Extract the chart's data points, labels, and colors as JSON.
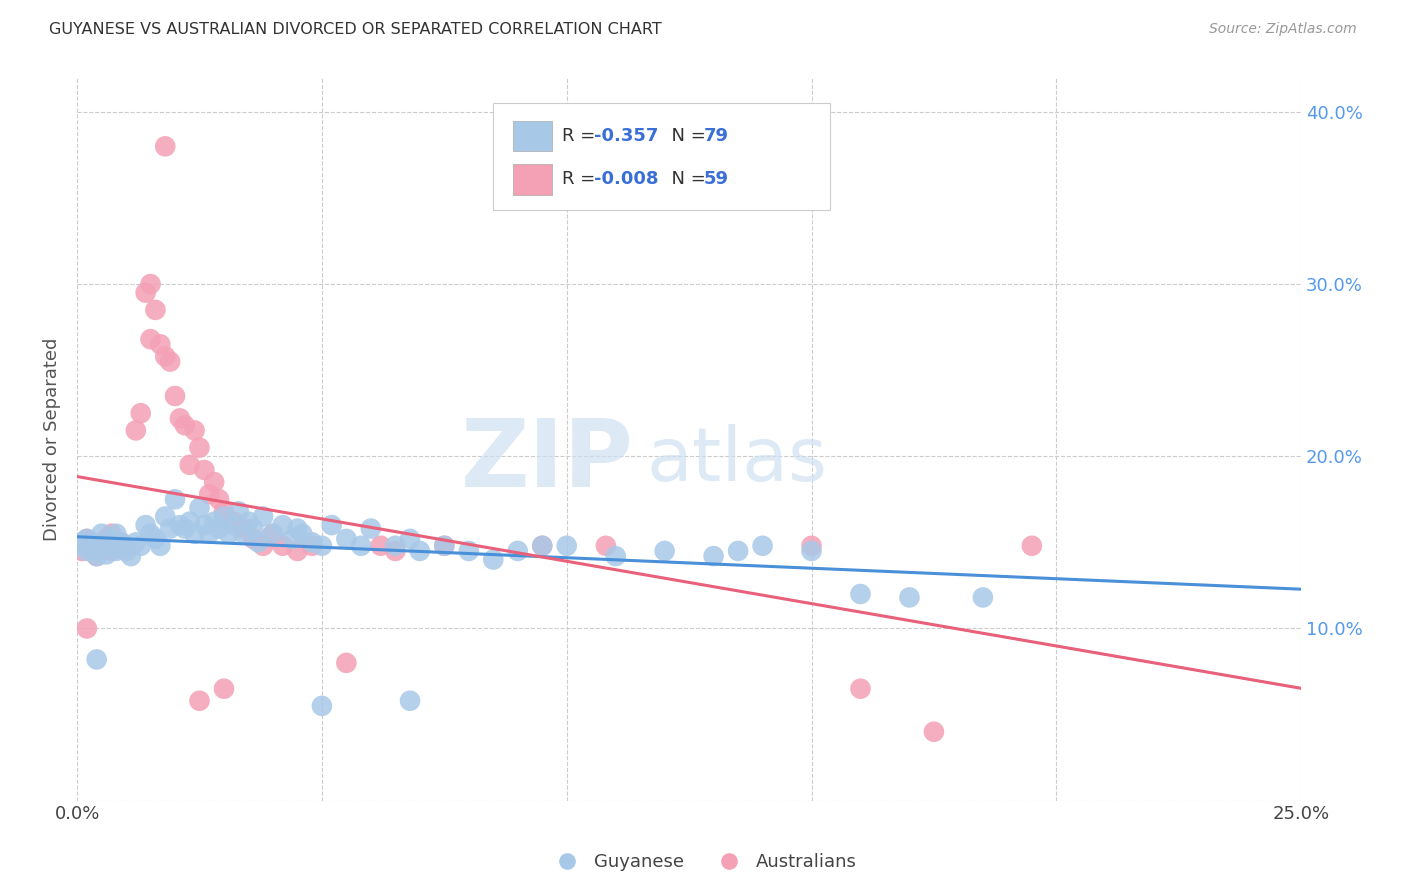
{
  "title": "GUYANESE VS AUSTRALIAN DIVORCED OR SEPARATED CORRELATION CHART",
  "source": "Source: ZipAtlas.com",
  "ylabel": "Divorced or Separated",
  "watermark_zip": "ZIP",
  "watermark_atlas": "atlas",
  "xlim": [
    0.0,
    0.25
  ],
  "ylim": [
    0.0,
    0.42
  ],
  "xtick_vals": [
    0.0,
    0.05,
    0.1,
    0.15,
    0.2,
    0.25
  ],
  "xtick_labels": [
    "0.0%",
    "",
    "",
    "",
    "",
    "25.0%"
  ],
  "ytick_vals": [
    0.0,
    0.1,
    0.2,
    0.3,
    0.4
  ],
  "ytick_labels_right": [
    "",
    "10.0%",
    "20.0%",
    "30.0%",
    "40.0%"
  ],
  "guyanese_R": -0.357,
  "guyanese_N": 79,
  "australian_R": -0.008,
  "australian_N": 59,
  "blue_scatter": "#a8c8e8",
  "pink_scatter": "#f4a0b5",
  "blue_line_color": "#4a90d9",
  "pink_line_color": "#e8607a",
  "legend_blue_label": "Guyanese",
  "legend_pink_label": "Australians",
  "legend_text_color": "#3a6fd8",
  "legend_label_color": "#333333",
  "guyanese_points": [
    [
      0.001,
      0.148
    ],
    [
      0.001,
      0.15
    ],
    [
      0.002,
      0.145
    ],
    [
      0.002,
      0.152
    ],
    [
      0.003,
      0.15
    ],
    [
      0.003,
      0.148
    ],
    [
      0.004,
      0.145
    ],
    [
      0.004,
      0.142
    ],
    [
      0.005,
      0.155
    ],
    [
      0.005,
      0.148
    ],
    [
      0.006,
      0.15
    ],
    [
      0.006,
      0.143
    ],
    [
      0.007,
      0.148
    ],
    [
      0.007,
      0.152
    ],
    [
      0.008,
      0.145
    ],
    [
      0.008,
      0.155
    ],
    [
      0.009,
      0.15
    ],
    [
      0.01,
      0.148
    ],
    [
      0.01,
      0.145
    ],
    [
      0.011,
      0.142
    ],
    [
      0.012,
      0.15
    ],
    [
      0.013,
      0.148
    ],
    [
      0.014,
      0.16
    ],
    [
      0.015,
      0.155
    ],
    [
      0.016,
      0.152
    ],
    [
      0.017,
      0.148
    ],
    [
      0.018,
      0.165
    ],
    [
      0.019,
      0.158
    ],
    [
      0.02,
      0.175
    ],
    [
      0.021,
      0.16
    ],
    [
      0.022,
      0.158
    ],
    [
      0.023,
      0.162
    ],
    [
      0.024,
      0.155
    ],
    [
      0.025,
      0.17
    ],
    [
      0.026,
      0.16
    ],
    [
      0.027,
      0.155
    ],
    [
      0.028,
      0.162
    ],
    [
      0.029,
      0.158
    ],
    [
      0.03,
      0.165
    ],
    [
      0.031,
      0.155
    ],
    [
      0.032,
      0.16
    ],
    [
      0.033,
      0.168
    ],
    [
      0.034,
      0.155
    ],
    [
      0.035,
      0.162
    ],
    [
      0.036,
      0.158
    ],
    [
      0.037,
      0.15
    ],
    [
      0.038,
      0.165
    ],
    [
      0.04,
      0.155
    ],
    [
      0.042,
      0.16
    ],
    [
      0.044,
      0.152
    ],
    [
      0.045,
      0.158
    ],
    [
      0.046,
      0.155
    ],
    [
      0.048,
      0.15
    ],
    [
      0.05,
      0.148
    ],
    [
      0.052,
      0.16
    ],
    [
      0.055,
      0.152
    ],
    [
      0.058,
      0.148
    ],
    [
      0.06,
      0.158
    ],
    [
      0.065,
      0.148
    ],
    [
      0.068,
      0.152
    ],
    [
      0.07,
      0.145
    ],
    [
      0.075,
      0.148
    ],
    [
      0.08,
      0.145
    ],
    [
      0.085,
      0.14
    ],
    [
      0.09,
      0.145
    ],
    [
      0.095,
      0.148
    ],
    [
      0.1,
      0.148
    ],
    [
      0.11,
      0.142
    ],
    [
      0.12,
      0.145
    ],
    [
      0.13,
      0.142
    ],
    [
      0.135,
      0.145
    ],
    [
      0.14,
      0.148
    ],
    [
      0.15,
      0.145
    ],
    [
      0.16,
      0.12
    ],
    [
      0.17,
      0.118
    ],
    [
      0.185,
      0.118
    ],
    [
      0.004,
      0.082
    ],
    [
      0.05,
      0.055
    ],
    [
      0.068,
      0.058
    ]
  ],
  "australian_points": [
    [
      0.001,
      0.148
    ],
    [
      0.001,
      0.145
    ],
    [
      0.002,
      0.152
    ],
    [
      0.002,
      0.148
    ],
    [
      0.003,
      0.145
    ],
    [
      0.003,
      0.15
    ],
    [
      0.004,
      0.148
    ],
    [
      0.004,
      0.142
    ],
    [
      0.005,
      0.15
    ],
    [
      0.005,
      0.145
    ],
    [
      0.006,
      0.148
    ],
    [
      0.006,
      0.152
    ],
    [
      0.007,
      0.155
    ],
    [
      0.007,
      0.145
    ],
    [
      0.008,
      0.148
    ],
    [
      0.009,
      0.15
    ],
    [
      0.01,
      0.145
    ],
    [
      0.012,
      0.215
    ],
    [
      0.013,
      0.225
    ],
    [
      0.014,
      0.295
    ],
    [
      0.015,
      0.3
    ],
    [
      0.015,
      0.268
    ],
    [
      0.016,
      0.285
    ],
    [
      0.017,
      0.265
    ],
    [
      0.018,
      0.38
    ],
    [
      0.018,
      0.258
    ],
    [
      0.019,
      0.255
    ],
    [
      0.02,
      0.235
    ],
    [
      0.021,
      0.222
    ],
    [
      0.022,
      0.218
    ],
    [
      0.023,
      0.195
    ],
    [
      0.024,
      0.215
    ],
    [
      0.025,
      0.205
    ],
    [
      0.026,
      0.192
    ],
    [
      0.027,
      0.178
    ],
    [
      0.028,
      0.185
    ],
    [
      0.029,
      0.175
    ],
    [
      0.03,
      0.168
    ],
    [
      0.032,
      0.162
    ],
    [
      0.034,
      0.158
    ],
    [
      0.036,
      0.152
    ],
    [
      0.038,
      0.148
    ],
    [
      0.04,
      0.155
    ],
    [
      0.042,
      0.148
    ],
    [
      0.045,
      0.145
    ],
    [
      0.048,
      0.148
    ],
    [
      0.055,
      0.08
    ],
    [
      0.062,
      0.148
    ],
    [
      0.065,
      0.145
    ],
    [
      0.075,
      0.148
    ],
    [
      0.03,
      0.065
    ],
    [
      0.025,
      0.058
    ],
    [
      0.095,
      0.148
    ],
    [
      0.108,
      0.148
    ],
    [
      0.15,
      0.148
    ],
    [
      0.16,
      0.065
    ],
    [
      0.175,
      0.04
    ],
    [
      0.195,
      0.148
    ],
    [
      0.002,
      0.1
    ]
  ]
}
